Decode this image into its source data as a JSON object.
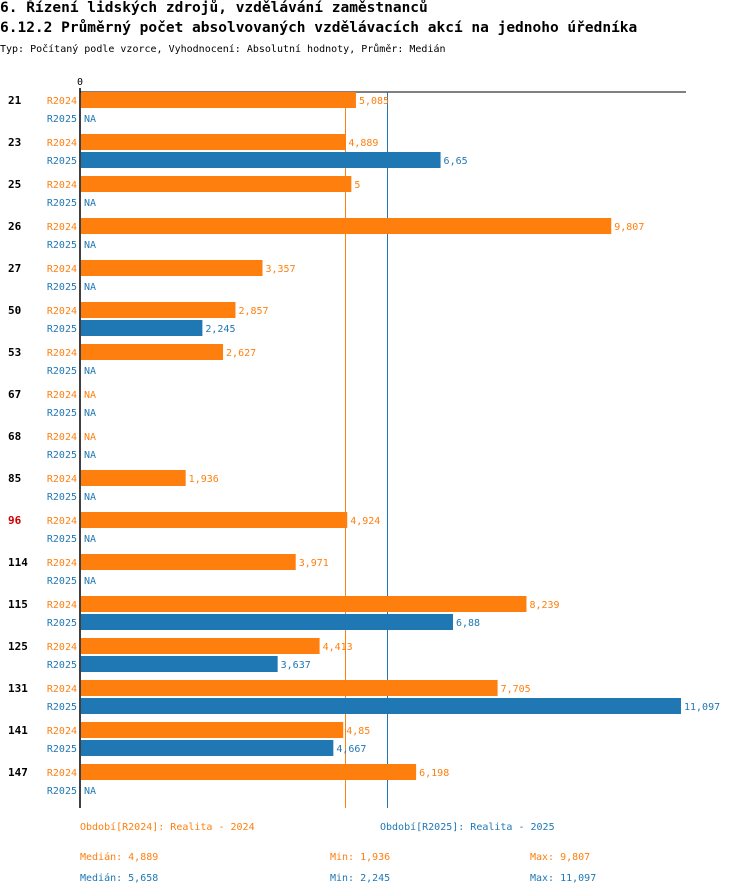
{
  "header": {
    "title": "6. Řízení lidských zdrojů, vzdělávání zaměstnanců",
    "subtitle": "6.12.2 Průměrný počet absolvovaných vzdělávacích akcí na jednoho úředníka",
    "type_line": "Typ: Počítaný podle vzorce, Vyhodnocení: Absolutní hodnoty, Průměr: Medián"
  },
  "colors": {
    "r2024": "#ff7f0e",
    "r2025": "#1f77b4",
    "highlight": "#cc0000",
    "axis": "#000000"
  },
  "chart_data": {
    "type": "bar",
    "orientation": "horizontal",
    "x_tick_label": "0",
    "xlim": [
      0,
      11.097
    ],
    "na_label": "NA",
    "categories": [
      "21",
      "23",
      "25",
      "26",
      "27",
      "50",
      "53",
      "67",
      "68",
      "85",
      "96",
      "114",
      "115",
      "125",
      "131",
      "141",
      "147"
    ],
    "highlight_category": "96",
    "series": [
      {
        "name": "R2024",
        "values": [
          5.085,
          4.889,
          5,
          9.807,
          3.357,
          2.857,
          2.627,
          null,
          null,
          1.936,
          4.924,
          3.971,
          8.239,
          4.413,
          7.705,
          4.85,
          6.198
        ],
        "labels": [
          "5,085",
          "4,889",
          "5",
          "9,807",
          "3,357",
          "2,857",
          "2,627",
          "NA",
          "NA",
          "1,936",
          "4,924",
          "3,971",
          "8,239",
          "4,413",
          "7,705",
          "4,85",
          "6,198"
        ]
      },
      {
        "name": "R2025",
        "values": [
          null,
          6.65,
          null,
          null,
          null,
          2.245,
          null,
          null,
          null,
          null,
          null,
          null,
          6.88,
          3.637,
          11.097,
          4.667,
          null
        ],
        "labels": [
          "NA",
          "6,65",
          "NA",
          "NA",
          "NA",
          "2,245",
          "NA",
          "NA",
          "NA",
          "NA",
          "NA",
          "NA",
          "6,88",
          "3,637",
          "11,097",
          "4,667",
          "NA"
        ]
      }
    ],
    "reference_lines": [
      {
        "series": "R2024",
        "stat": "median",
        "value": 4.889
      },
      {
        "series": "R2025",
        "stat": "median",
        "value": 5.658
      }
    ]
  },
  "footer": {
    "legend_2024": "Období[R2024]: Realita - 2024",
    "legend_2025": "Období[R2025]: Realita - 2025",
    "median_2024": "Medián: 4,889",
    "min_2024": "Min: 1,936",
    "max_2024": "Max: 9,807",
    "median_2025": "Medián: 5,658",
    "min_2025": "Min: 2,245",
    "max_2025": "Max: 11,097"
  }
}
